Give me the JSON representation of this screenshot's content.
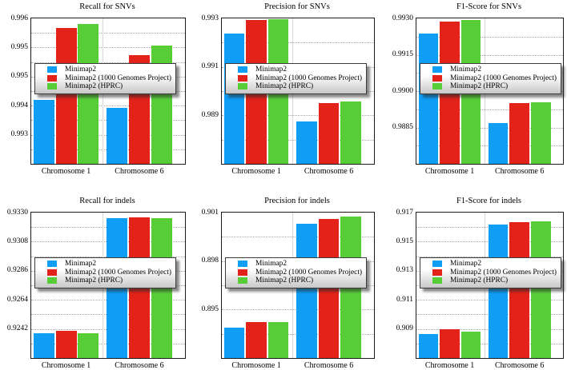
{
  "page": {
    "background": "#ffffff"
  },
  "colors": {
    "series": [
      "#0F9DF5",
      "#E3231A",
      "#57CE38"
    ],
    "grid": "#a9a9a9",
    "frame": "#1a1a1a",
    "divider": "#d8d8d8"
  },
  "legend": {
    "position": "center-left",
    "entries": [
      "Minimap2",
      "Minimap2 (1000 Genomes Project)",
      "Minimap2 (HPRC)"
    ]
  },
  "chart_data": [
    {
      "type": "bar",
      "title": "Recall for SNVs",
      "categories": [
        "Chromosome 1",
        "Chromosome 6"
      ],
      "series": [
        {
          "name": "Minimap2",
          "values": [
            0.9939,
            0.9937
          ]
        },
        {
          "name": "Minimap2 (1000 Genomes Project)",
          "values": [
            0.99575,
            0.99505
          ]
        },
        {
          "name": "Minimap2 (HPRC)",
          "values": [
            0.99585,
            0.9953
          ]
        }
      ],
      "yticks": [
        {
          "v": 0.996,
          "label": "0.996"
        },
        {
          "v": 0.99525,
          "label": "0.995"
        },
        {
          "v": 0.9945,
          "label": "0.995"
        },
        {
          "v": 0.99375,
          "label": "0.994"
        },
        {
          "v": 0.993,
          "label": "0.993"
        }
      ],
      "ylim": [
        0.99225,
        0.996
      ],
      "grid_step": 0.000375,
      "grid": true
    },
    {
      "type": "bar",
      "title": "Precision for SNVs",
      "categories": [
        "Chromosome 1",
        "Chromosome 6"
      ],
      "series": [
        {
          "name": "Minimap2",
          "values": [
            0.99236,
            0.98875
          ]
        },
        {
          "name": "Minimap2 (1000 Genomes Project)",
          "values": [
            0.99292,
            0.98952
          ]
        },
        {
          "name": "Minimap2 (HPRC)",
          "values": [
            0.99296,
            0.98958
          ]
        }
      ],
      "yticks": [
        {
          "v": 0.993,
          "label": "0.993"
        },
        {
          "v": 0.991,
          "label": "0.991"
        },
        {
          "v": 0.989,
          "label": "0.989"
        }
      ],
      "ylim": [
        0.987,
        0.993
      ],
      "grid_step": 0.001,
      "grid": true
    },
    {
      "type": "bar",
      "title": "F1-Score for SNVs",
      "categories": [
        "Chromosome 1",
        "Chromosome 6"
      ],
      "series": [
        {
          "name": "Minimap2",
          "values": [
            0.99237,
            0.98867
          ]
        },
        {
          "name": "Minimap2 (1000 Genomes Project)",
          "values": [
            0.99288,
            0.98951
          ]
        },
        {
          "name": "Minimap2 (HPRC)",
          "values": [
            0.99292,
            0.98955
          ]
        }
      ],
      "yticks": [
        {
          "v": 0.993,
          "label": "0.9930"
        },
        {
          "v": 0.9915,
          "label": "0.9915"
        },
        {
          "v": 0.99,
          "label": "0.9900"
        },
        {
          "v": 0.9885,
          "label": "0.9885"
        }
      ],
      "ylim": [
        0.987,
        0.993
      ],
      "grid_step": 0.00075,
      "grid": true
    },
    {
      "type": "bar",
      "title": "Recall for indels",
      "categories": [
        "Chromosome 1",
        "Chromosome 6"
      ],
      "series": [
        {
          "name": "Minimap2",
          "values": [
            0.92385,
            0.93255
          ]
        },
        {
          "name": "Minimap2 (1000 Genomes Project)",
          "values": [
            0.92405,
            0.93262
          ]
        },
        {
          "name": "Minimap2 (HPRC)",
          "values": [
            0.9239,
            0.93256
          ]
        }
      ],
      "yticks": [
        {
          "v": 0.933,
          "label": "0.9330"
        },
        {
          "v": 0.9308,
          "label": "0.9308"
        },
        {
          "v": 0.9286,
          "label": "0.9286"
        },
        {
          "v": 0.9264,
          "label": "0.9264"
        },
        {
          "v": 0.9242,
          "label": "0.9242"
        }
      ],
      "ylim": [
        0.922,
        0.933
      ],
      "grid_step": 0.0011,
      "grid": true
    },
    {
      "type": "bar",
      "title": "Precision for indels",
      "categories": [
        "Chromosome 1",
        "Chromosome 6"
      ],
      "series": [
        {
          "name": "Minimap2",
          "values": [
            0.89388,
            0.90033
          ]
        },
        {
          "name": "Minimap2 (1000 Genomes Project)",
          "values": [
            0.89423,
            0.90062
          ]
        },
        {
          "name": "Minimap2 (HPRC)",
          "values": [
            0.89423,
            0.90073
          ]
        }
      ],
      "yticks": [
        {
          "v": 0.901,
          "label": "0.901"
        },
        {
          "v": 0.898,
          "label": "0.898"
        },
        {
          "v": 0.895,
          "label": "0.895"
        }
      ],
      "ylim": [
        0.892,
        0.901
      ],
      "grid_step": 0.0015,
      "grid": true
    },
    {
      "type": "bar",
      "title": "F1-Score for indels",
      "categories": [
        "Chromosome 1",
        "Chromosome 6"
      ],
      "series": [
        {
          "name": "Minimap2",
          "values": [
            0.90867,
            0.91618
          ]
        },
        {
          "name": "Minimap2 (1000 Genomes Project)",
          "values": [
            0.909,
            0.91634
          ]
        },
        {
          "name": "Minimap2 (HPRC)",
          "values": [
            0.90883,
            0.9164
          ]
        }
      ],
      "yticks": [
        {
          "v": 0.917,
          "label": "0.917"
        },
        {
          "v": 0.915,
          "label": "0.915"
        },
        {
          "v": 0.913,
          "label": "0.913"
        },
        {
          "v": 0.911,
          "label": "0.911"
        },
        {
          "v": 0.909,
          "label": "0.909"
        }
      ],
      "ylim": [
        0.907,
        0.917
      ],
      "grid_step": 0.001,
      "grid": true
    }
  ]
}
